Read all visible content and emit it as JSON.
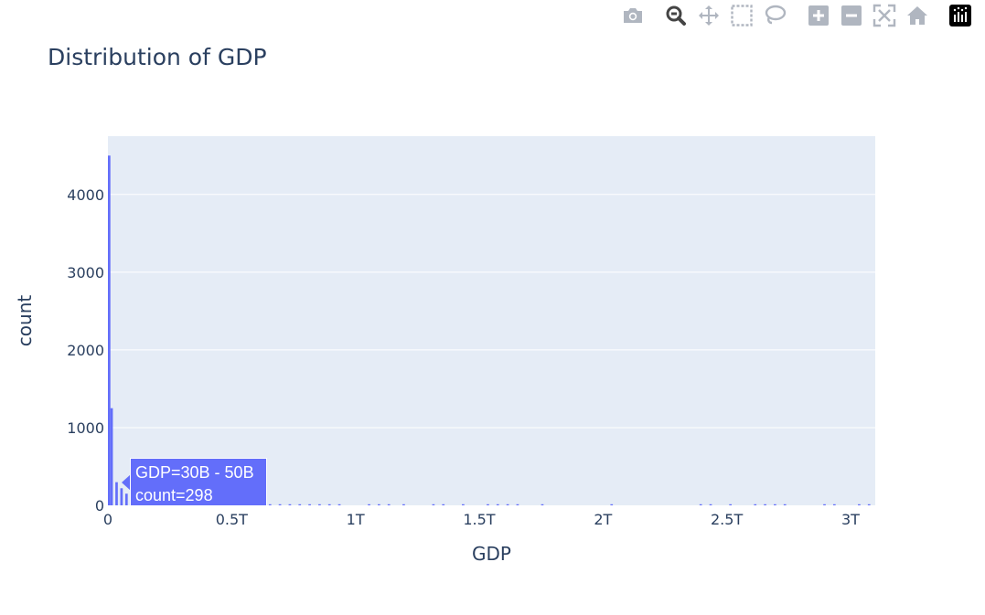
{
  "modebar": {
    "buttons": [
      {
        "icon": "camera-icon"
      },
      {
        "icon": "zoom-icon"
      },
      {
        "icon": "pan-icon"
      },
      {
        "icon": "box-select-icon"
      },
      {
        "icon": "lasso-select-icon"
      },
      {
        "icon": "zoom-in-icon"
      },
      {
        "icon": "zoom-out-icon"
      },
      {
        "icon": "autoscale-icon"
      },
      {
        "icon": "home-icon"
      },
      {
        "icon": "plotly-logo-icon"
      }
    ]
  },
  "hover": {
    "line1": "GDP=30B - 50B",
    "line2": "count=298"
  },
  "chart_data": {
    "type": "bar",
    "title": "Distribution of GDP",
    "xlabel": "GDP",
    "ylabel": "count",
    "xlim": [
      0,
      3100000000000
    ],
    "ylim": [
      0,
      4750
    ],
    "bin_width": 10000000000,
    "x_ticks": [
      {
        "value": 0,
        "label": "0"
      },
      {
        "value": 500000000000,
        "label": "0.5T"
      },
      {
        "value": 1000000000000,
        "label": "1T"
      },
      {
        "value": 1500000000000,
        "label": "1.5T"
      },
      {
        "value": 2000000000000,
        "label": "2T"
      },
      {
        "value": 2500000000000,
        "label": "2.5T"
      },
      {
        "value": 3000000000000,
        "label": "3T"
      }
    ],
    "y_ticks": [
      {
        "value": 0,
        "label": "0"
      },
      {
        "value": 1000,
        "label": "1000"
      },
      {
        "value": 2000,
        "label": "2000"
      },
      {
        "value": 3000,
        "label": "3000"
      },
      {
        "value": 4000,
        "label": "4000"
      }
    ],
    "grid": true,
    "colors": {
      "bar": "#636efa",
      "plot_bg": "#e5ecf6",
      "grid": "#ffffff",
      "text": "#2a3f5f"
    },
    "bins": [
      [
        0,
        4500
      ],
      [
        10000000000,
        1250
      ],
      [
        30000000000,
        298
      ],
      [
        50000000000,
        220
      ],
      [
        70000000000,
        150
      ],
      [
        90000000000,
        110
      ],
      [
        110000000000,
        85
      ],
      [
        130000000000,
        70
      ],
      [
        150000000000,
        55
      ],
      [
        170000000000,
        48
      ],
      [
        190000000000,
        40
      ],
      [
        210000000000,
        35
      ],
      [
        230000000000,
        30
      ],
      [
        250000000000,
        26
      ],
      [
        270000000000,
        22
      ],
      [
        290000000000,
        20
      ],
      [
        310000000000,
        18
      ],
      [
        330000000000,
        16
      ],
      [
        350000000000,
        14
      ],
      [
        370000000000,
        12
      ],
      [
        390000000000,
        11
      ],
      [
        410000000000,
        10
      ],
      [
        430000000000,
        9
      ],
      [
        450000000000,
        8
      ],
      [
        470000000000,
        7
      ],
      [
        490000000000,
        6
      ],
      [
        510000000000,
        6
      ],
      [
        530000000000,
        5
      ],
      [
        550000000000,
        5
      ],
      [
        570000000000,
        4
      ],
      [
        590000000000,
        4
      ],
      [
        610000000000,
        3
      ],
      [
        650000000000,
        3
      ],
      [
        690000000000,
        2
      ],
      [
        730000000000,
        2
      ],
      [
        770000000000,
        2
      ],
      [
        810000000000,
        2
      ],
      [
        850000000000,
        2
      ],
      [
        890000000000,
        2
      ],
      [
        930000000000,
        1
      ],
      [
        1050000000000,
        1
      ],
      [
        1090000000000,
        1
      ],
      [
        1130000000000,
        1
      ],
      [
        1190000000000,
        1
      ],
      [
        1310000000000,
        1
      ],
      [
        1350000000000,
        1
      ],
      [
        1430000000000,
        1
      ],
      [
        1530000000000,
        1
      ],
      [
        1570000000000,
        1
      ],
      [
        1610000000000,
        1
      ],
      [
        1650000000000,
        1
      ],
      [
        1750000000000,
        1
      ],
      [
        2030000000000,
        1
      ],
      [
        2390000000000,
        1
      ],
      [
        2430000000000,
        1
      ],
      [
        2510000000000,
        1
      ],
      [
        2610000000000,
        1
      ],
      [
        2650000000000,
        1
      ],
      [
        2690000000000,
        1
      ],
      [
        2730000000000,
        1
      ],
      [
        2890000000000,
        1
      ],
      [
        2930000000000,
        1
      ],
      [
        3030000000000,
        1
      ],
      [
        3070000000000,
        1
      ]
    ]
  }
}
